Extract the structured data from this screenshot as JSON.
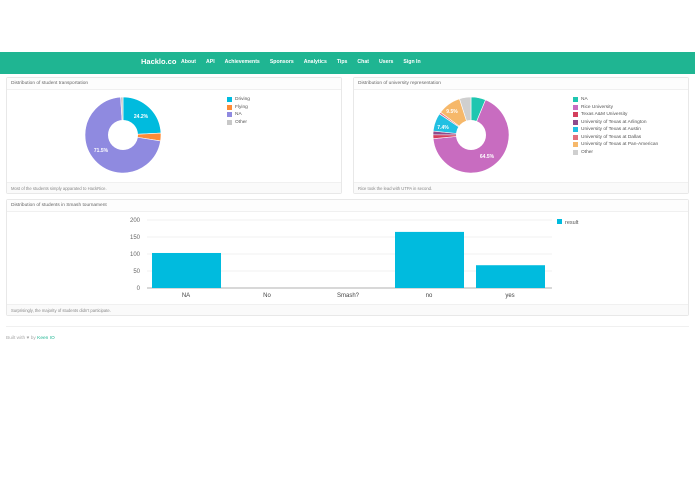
{
  "navbar": {
    "brand": "Hacklo.co",
    "links": [
      "About",
      "API",
      "Achievements",
      "Sponsors",
      "Analytics",
      "Tips",
      "Chat",
      "Users",
      "Sign In"
    ],
    "background_color": "#1fb592"
  },
  "panels": {
    "transportation": {
      "title": "Distribution of student transportation",
      "caption": "Most of the students simply apparated to HackRice.",
      "legend": [
        "Driving",
        "Flying",
        "NA",
        "Other"
      ],
      "labels": {
        "driving": "24.2%",
        "na": "71.5%"
      }
    },
    "university": {
      "title": "Distribution of university representation",
      "caption": "Rice took the lead with UTPA in second.",
      "legend": [
        "NA",
        "Rice University",
        "Texas A&M University",
        "University of Texas at Arlington",
        "University of Texas at Austin",
        "University of Texas at Dallas",
        "University of Texas at Pan-American",
        "Other"
      ],
      "labels": {
        "rice": "64.5%",
        "austin": "7.4%",
        "utpa": "9.5%"
      }
    },
    "smash": {
      "title": "Distribution of students in Smash tournament",
      "caption": "Surprisingly, the majority of students didn't participate.",
      "legend": "result",
      "y_ticks": [
        "200",
        "150",
        "100",
        "50",
        "0"
      ],
      "categories": [
        "NA",
        "No",
        "Smash?",
        "no",
        "yes"
      ]
    }
  },
  "footer": {
    "prefix": "Built with ♥ by",
    "link": "Keen IO"
  },
  "chart_data": [
    {
      "type": "pie",
      "title": "Distribution of student transportation",
      "categories": [
        "Driving",
        "Flying",
        "NA",
        "Other"
      ],
      "values": [
        24.2,
        3.3,
        71.5,
        1.0
      ],
      "colors": [
        "#00bbde",
        "#fe8b36",
        "#8f8ae0",
        "#c8c8c8"
      ],
      "legend_position": "right"
    },
    {
      "type": "pie",
      "title": "Distribution of university representation",
      "categories": [
        "NA",
        "Rice University",
        "Texas A&M University",
        "University of Texas at Arlington",
        "University of Texas at Austin",
        "University of Texas at Dallas",
        "University of Texas at Pan-American",
        "Other"
      ],
      "values": [
        6.0,
        64.5,
        1.6,
        1.5,
        7.4,
        0.8,
        9.5,
        4.7
      ],
      "colors": [
        "#1fc6b0",
        "#c86cc0",
        "#d43f5c",
        "#8e4b8c",
        "#21c0e2",
        "#e2707c",
        "#f6b86a",
        "#cfcfcf"
      ],
      "legend_position": "right"
    },
    {
      "type": "bar",
      "title": "Distribution of students in Smash tournament",
      "categories": [
        "NA",
        "No",
        "Smash?",
        "no",
        "yes"
      ],
      "series": [
        {
          "name": "result",
          "values": [
            103,
            0,
            0,
            165,
            67
          ]
        }
      ],
      "xlabel": "",
      "ylabel": "",
      "ylim": [
        0,
        200
      ],
      "y_ticks": [
        0,
        50,
        100,
        150,
        200
      ],
      "grid": true,
      "legend_position": "right",
      "color": "#00bbde"
    }
  ]
}
